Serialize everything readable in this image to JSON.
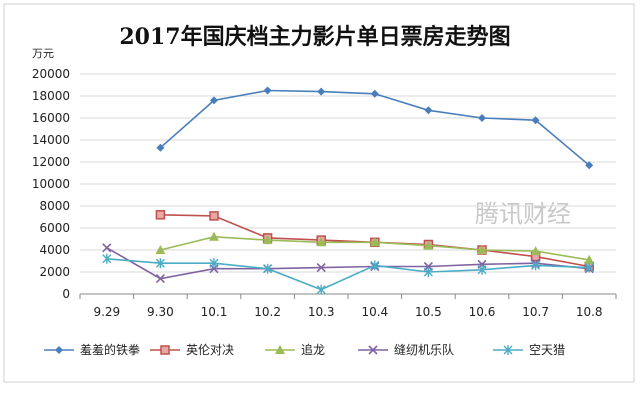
{
  "chart_data": {
    "type": "line",
    "title": "2017年国庆档主力影片单日票房走势图",
    "unit_label": "万元",
    "watermark": "腾讯财经",
    "xlabel": "",
    "ylabel": "",
    "categories": [
      "9.29",
      "9.30",
      "10.1",
      "10.2",
      "10.3",
      "10.4",
      "10.5",
      "10.6",
      "10.7",
      "10.8"
    ],
    "ylim": [
      0,
      20000
    ],
    "yticks": [
      0,
      2000,
      4000,
      6000,
      8000,
      10000,
      12000,
      14000,
      16000,
      18000,
      20000
    ],
    "grid": true,
    "legend": "bottom",
    "series": [
      {
        "name": "羞羞的铁拳",
        "color": "#4a7ebb",
        "marker": "diamond",
        "values": [
          null,
          13300,
          17600,
          18500,
          18400,
          18200,
          16700,
          16000,
          15800,
          11700
        ]
      },
      {
        "name": "英伦对决",
        "color": "#c0504d",
        "marker": "square",
        "values": [
          null,
          7200,
          7100,
          5100,
          4900,
          4700,
          4500,
          4000,
          3400,
          2500
        ]
      },
      {
        "name": "追龙",
        "color": "#9bbb59",
        "marker": "triangle",
        "values": [
          null,
          4000,
          5200,
          4900,
          4700,
          4700,
          4400,
          4000,
          3900,
          3100
        ]
      },
      {
        "name": "缝纫机乐队",
        "color": "#8064a2",
        "marker": "x",
        "values": [
          4200,
          1400,
          2300,
          2300,
          2400,
          2500,
          2500,
          2700,
          2800,
          2300
        ]
      },
      {
        "name": "空天猎",
        "color": "#4bacc6",
        "marker": "star",
        "values": [
          3200,
          2800,
          2800,
          2300,
          400,
          2600,
          2000,
          2200,
          2600,
          2400
        ]
      }
    ]
  }
}
